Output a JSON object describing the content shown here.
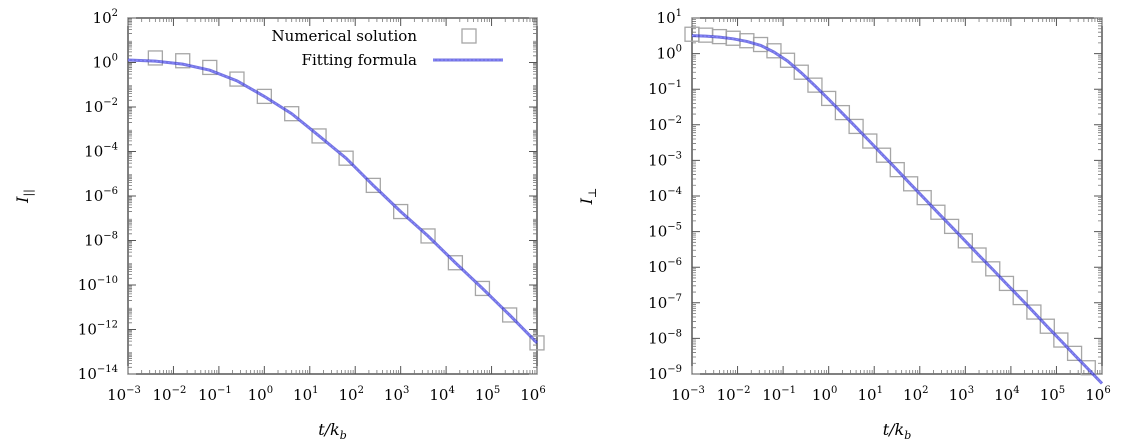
{
  "chart_data": [
    {
      "type": "scatter",
      "log_x": true,
      "log_y": true,
      "grid": false,
      "xlim": [
        0.001,
        1000000
      ],
      "ylim": [
        1e-14,
        100
      ],
      "x_tick_exponents": [
        "-3",
        "-2",
        "-1",
        "0",
        "1",
        "2",
        "3",
        "4",
        "5",
        "6"
      ],
      "y_tick_exponents": [
        "-14",
        "-12",
        "-10",
        "-8",
        "-6",
        "-4",
        "-2",
        "0",
        "2"
      ],
      "tick_base": "10",
      "xlabel": "t/k",
      "xlabel_sub": "b",
      "ylabel": "I",
      "ylabel_sub": "||",
      "legend": {
        "position": "top-right",
        "entries": [
          "Numerical solution",
          "Fitting formula"
        ]
      },
      "series": [
        {
          "name": "Numerical solution",
          "style": "open-square",
          "color": "#a6a6a6",
          "x": [
            0.004,
            0.016,
            0.063,
            0.25,
            1,
            4,
            16,
            63,
            250,
            1000,
            4000,
            16000,
            63000,
            250000,
            1000000
          ],
          "y": [
            1.6,
            1.2,
            0.6,
            0.18,
            0.03,
            0.005,
            0.0005,
            5e-05,
            3e-06,
            2e-07,
            1.6e-08,
            1e-09,
            7e-11,
            4.5e-12,
            2.5e-13
          ]
        },
        {
          "name": "Fitting formula",
          "style": "line",
          "color": "#3b3bd6",
          "x": [
            0.001,
            0.004,
            0.016,
            0.063,
            0.25,
            1,
            4,
            16,
            63,
            250,
            1000,
            4000,
            16000,
            63000,
            250000,
            1000000
          ],
          "y": [
            1.3,
            1.15,
            0.85,
            0.45,
            0.15,
            0.03,
            0.005,
            0.0005,
            5e-05,
            3e-06,
            2e-07,
            1.6e-08,
            1e-09,
            7e-11,
            4.5e-12,
            2.5e-13
          ]
        }
      ]
    },
    {
      "type": "scatter",
      "log_x": true,
      "log_y": true,
      "grid": false,
      "xlim": [
        0.001,
        1000000
      ],
      "ylim": [
        1e-09,
        10
      ],
      "x_tick_exponents": [
        "-3",
        "-2",
        "-1",
        "0",
        "1",
        "2",
        "3",
        "4",
        "5",
        "6"
      ],
      "y_tick_exponents": [
        "-9",
        "-8",
        "-7",
        "-6",
        "-5",
        "-4",
        "-3",
        "-2",
        "-1",
        "0",
        "1"
      ],
      "tick_base": "10",
      "xlabel": "t/k",
      "xlabel_sub": "b",
      "ylabel": "I",
      "ylabel_sub": "⊥",
      "series": [
        {
          "name": "Numerical solution",
          "style": "open-square",
          "color": "#a6a6a6",
          "x": [
            0.001,
            0.002,
            0.004,
            0.008,
            0.016,
            0.032,
            0.063,
            0.125,
            0.25,
            0.5,
            1,
            2,
            4,
            8,
            16,
            32,
            63,
            125,
            250,
            500,
            1000,
            2000,
            4000,
            8000,
            16000,
            32000,
            63000,
            125000,
            250000,
            500000
          ],
          "y": [
            3.5,
            3.3,
            3.0,
            2.7,
            2.3,
            1.8,
            1.2,
            0.65,
            0.3,
            0.13,
            0.055,
            0.022,
            0.009,
            0.0035,
            0.0014,
            0.00055,
            0.00022,
            9e-05,
            3.5e-05,
            1.4e-05,
            5.5e-06,
            2.2e-06,
            9e-07,
            3.5e-07,
            1.4e-07,
            5.5e-08,
            2.2e-08,
            9e-09,
            3.8e-09,
            1.5e-09
          ]
        },
        {
          "name": "Fitting formula",
          "style": "line",
          "color": "#3b3bd6",
          "x": [
            0.001,
            0.002,
            0.004,
            0.008,
            0.016,
            0.032,
            0.063,
            0.125,
            0.25,
            0.5,
            1,
            2,
            4,
            8,
            16,
            32,
            63,
            125,
            250,
            500,
            1000,
            2000,
            4000,
            8000,
            16000,
            32000,
            63000,
            125000,
            250000,
            500000,
            1000000
          ],
          "y": [
            3.2,
            3.1,
            2.9,
            2.6,
            2.2,
            1.7,
            1.1,
            0.62,
            0.29,
            0.125,
            0.052,
            0.021,
            0.0085,
            0.0034,
            0.00135,
            0.00054,
            0.000215,
            8.6e-05,
            3.4e-05,
            1.36e-05,
            5.4e-06,
            2.15e-06,
            8.6e-07,
            3.4e-07,
            1.36e-07,
            5.4e-08,
            2.15e-08,
            8.6e-09,
            3.4e-09,
            1.36e-09,
            5.4e-10
          ]
        }
      ]
    }
  ]
}
